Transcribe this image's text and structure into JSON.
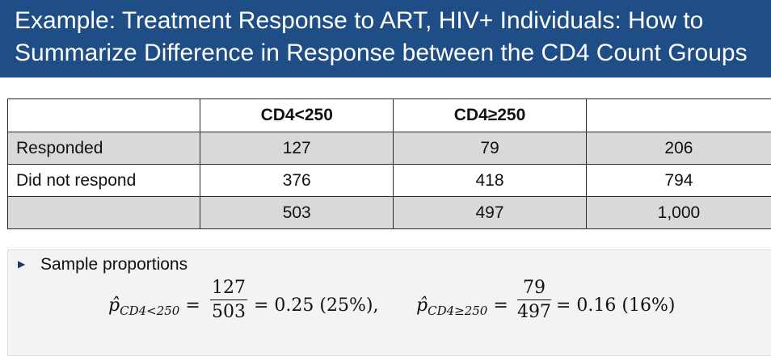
{
  "header": {
    "title_line1": "Example: Treatment Response to ART, HIV+ Individuals: How to",
    "title_line2": "Summarize Difference in Response between the CD4 Count Groups"
  },
  "table": {
    "columns": [
      "",
      "CD4<250",
      "CD4≥250",
      ""
    ],
    "rows": [
      {
        "label": "Responded",
        "cells": [
          "127",
          "79",
          "206"
        ]
      },
      {
        "label": "Did not respond",
        "cells": [
          "376",
          "418",
          "794"
        ]
      },
      {
        "label": "",
        "cells": [
          "503",
          "497",
          "1,000"
        ]
      }
    ]
  },
  "sample": {
    "bullet_label": "Sample proportions",
    "p1": {
      "symbol": "p̂",
      "subscript": "CD4<250",
      "numerator": "127",
      "denominator": "503",
      "result": "= 0.25 (25%),"
    },
    "p2": {
      "symbol": "p̂",
      "subscript": "CD4≥250",
      "numerator": "79",
      "denominator": "497",
      "result": "= 0.16 (16%)"
    }
  }
}
